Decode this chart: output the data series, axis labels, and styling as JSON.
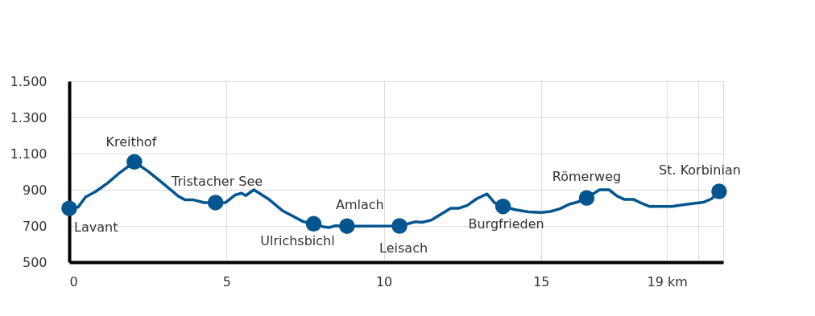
{
  "chart_data": {
    "type": "line",
    "xlim": [
      0,
      20.79
    ],
    "ylim": [
      500,
      1500
    ],
    "xticks": [
      0,
      5,
      10,
      15,
      {
        "value": 19,
        "label": "19 km"
      },
      {
        "value": 20,
        "label": null
      }
    ],
    "yticks": [
      500,
      700,
      900,
      {
        "value": 1100,
        "label": "1.100"
      },
      {
        "value": 1300,
        "label": "1.300"
      },
      {
        "value": 1500,
        "label": "1.500"
      }
    ],
    "grid": true,
    "series": [
      {
        "type": "line",
        "color": "#02558f",
        "marker": "none",
        "x": [
          0,
          0.28,
          0.52,
          0.84,
          1.22,
          1.56,
          2.07,
          2.5,
          2.92,
          3.48,
          3.69,
          3.95,
          4.29,
          4.65,
          4.97,
          5.27,
          5.48,
          5.61,
          5.87,
          6.33,
          6.8,
          7.44,
          7.77,
          8.04,
          8.25,
          8.47,
          8.83,
          10.5,
          11.0,
          11.22,
          11.52,
          12.13,
          12.39,
          12.65,
          12.95,
          13.28,
          13.52,
          13.79,
          14.17,
          14.6,
          15.0,
          15.3,
          15.6,
          15.9,
          16.16,
          16.45,
          16.86,
          17.16,
          17.42,
          17.64,
          17.94,
          18.16,
          18.44,
          19.16,
          19.64,
          20.16,
          20.42,
          20.66
        ],
        "values": [
          797,
          804,
          860,
          890,
          937,
          988,
          1054,
          1003,
          944,
          863,
          844,
          844,
          829,
          829,
          829,
          871,
          881,
          868,
          900,
          849,
          782,
          724,
          712,
          697,
          691,
          701,
          699,
          700,
          723,
          720,
          733,
          798,
          798,
          813,
          850,
          877,
          828,
          808,
          790,
          778,
          774,
          780,
          795,
          820,
          832,
          855,
          900,
          900,
          865,
          847,
          847,
          828,
          808,
          808,
          820,
          831,
          850,
          891
        ]
      },
      {
        "type": "scatter",
        "color": "#02558f",
        "marker": "circle",
        "x": [
          0,
          2.07,
          4.65,
          7.77,
          8.83,
          10.5,
          13.79,
          16.45,
          20.66
        ],
        "values": [
          797,
          1054,
          829,
          712,
          699,
          700,
          808,
          855,
          891
        ]
      }
    ],
    "annotations": [
      {
        "text": "Lavant",
        "x": 0,
        "y": 797
      },
      {
        "text": "Kreithof",
        "x": 2.07,
        "y": 1054
      },
      {
        "text": "Tristacher See",
        "x": 4.65,
        "y": 829
      },
      {
        "text": "Ulrichsbichl",
        "x": 7.77,
        "y": 712
      },
      {
        "text": "Amlach",
        "x": 8.83,
        "y": 699
      },
      {
        "text": "Leisach",
        "x": 10.5,
        "y": 700
      },
      {
        "text": "Burgfrieden",
        "x": 13.79,
        "y": 808
      },
      {
        "text": "Römerweg",
        "x": 16.45,
        "y": 855
      },
      {
        "text": "St. Korbinian",
        "x": 20.66,
        "y": 891
      }
    ]
  }
}
